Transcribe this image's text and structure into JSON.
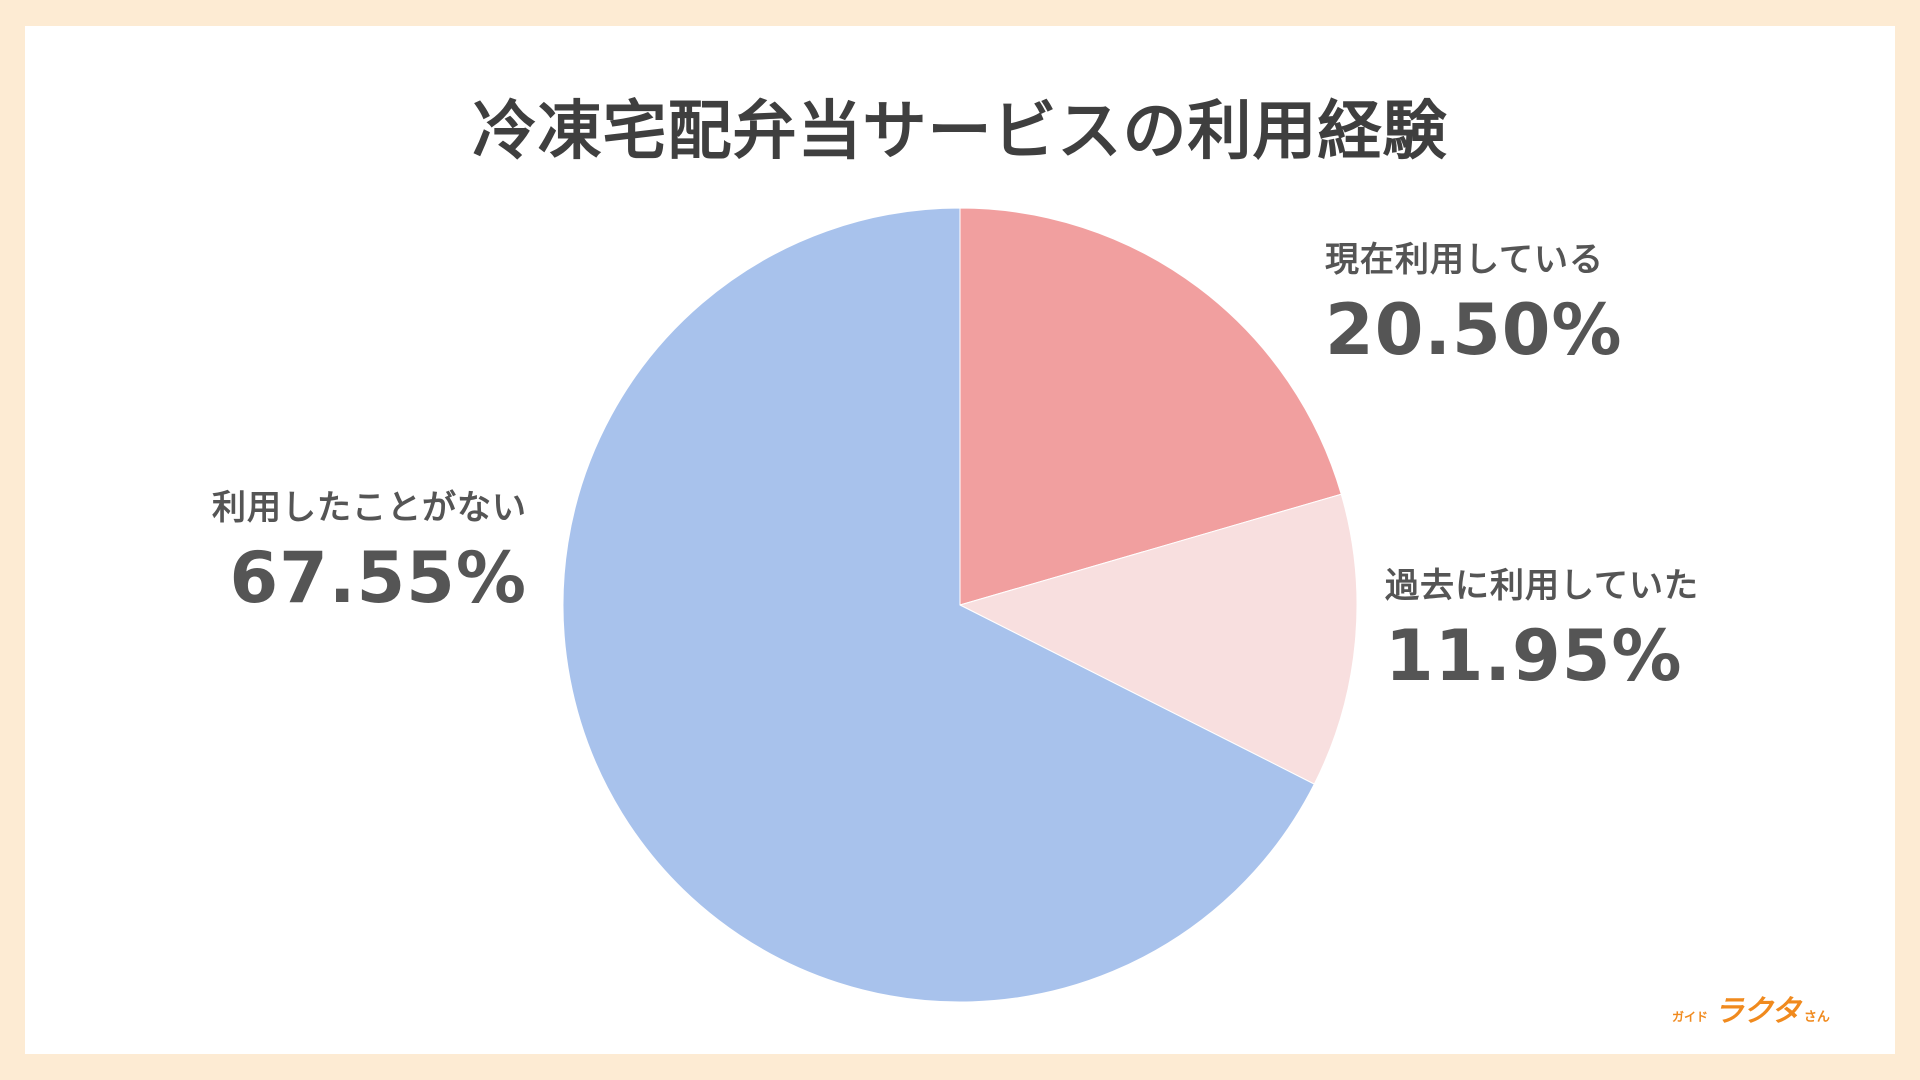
{
  "page_title": "冷凍宅配弁当サービスの利用経験",
  "chart_data": {
    "type": "pie",
    "title": "冷凍宅配弁当サービスの利用経験",
    "slices": [
      {
        "name": "現在利用している",
        "value": 20.5,
        "label": "20.50%",
        "color": "#f19f9f"
      },
      {
        "name": "過去に利用していた",
        "value": 11.95,
        "label": "11.95%",
        "color": "#f8dfdf"
      },
      {
        "name": "利用したことがない",
        "value": 67.55,
        "label": "67.55%",
        "color": "#a8c2ec"
      }
    ]
  },
  "logo": {
    "small": "ガイド",
    "main": "ラクタ",
    "tail": "さん",
    "color": "#f08a1e"
  }
}
